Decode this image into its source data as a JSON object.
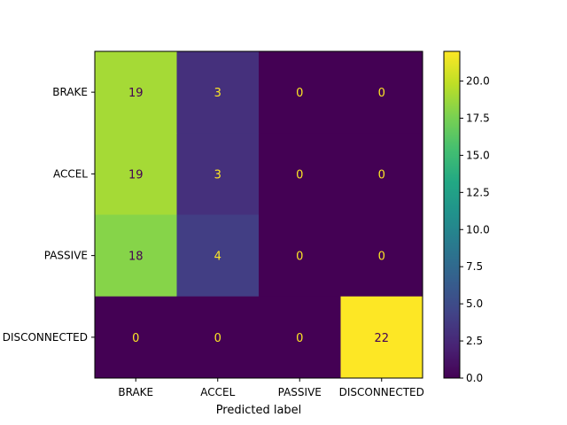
{
  "chart_data": {
    "type": "heatmap",
    "title": "",
    "xlabel": "Predicted label",
    "ylabel": "",
    "x_categories": [
      "BRAKE",
      "ACCEL",
      "PASSIVE",
      "DISCONNECTED"
    ],
    "y_categories": [
      "BRAKE",
      "ACCEL",
      "PASSIVE",
      "DISCONNECTED"
    ],
    "values": [
      [
        19,
        3,
        0,
        0
      ],
      [
        19,
        3,
        0,
        0
      ],
      [
        18,
        4,
        0,
        0
      ],
      [
        0,
        0,
        0,
        22
      ]
    ],
    "colormap": "viridis",
    "color_range": [
      0,
      22
    ],
    "colorbar_ticks": [
      "0.0",
      "2.5",
      "5.0",
      "7.5",
      "10.0",
      "12.5",
      "15.0",
      "17.5",
      "20.0"
    ],
    "text_color_dark_cells": "#fde725",
    "text_color_light_cells": "#440154"
  }
}
